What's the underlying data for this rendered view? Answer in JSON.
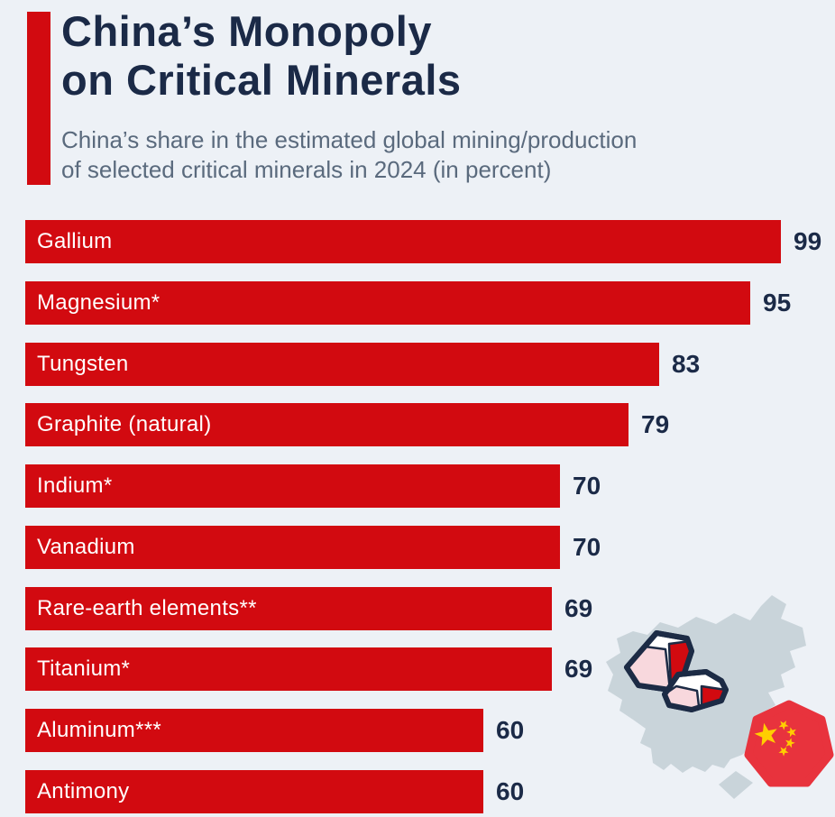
{
  "page": {
    "background_color": "#edf1f6"
  },
  "header": {
    "accent_color": "#d20a10",
    "title_line1": "China’s Monopoly",
    "title_line2": "on Critical Minerals",
    "title_color": "#1b2a47",
    "subtitle_line1": "China’s share in the estimated global mining/production",
    "subtitle_line2": "of selected critical minerals in 2024 (in percent)",
    "subtitle_color": "#5a6a7d"
  },
  "chart_data": {
    "type": "bar",
    "orientation": "horizontal",
    "title": "China’s Monopoly on Critical Minerals",
    "subtitle": "China’s share in the estimated global mining/production of selected critical minerals in 2024 (in percent)",
    "unit": "percent",
    "year": "2024",
    "xlim": [
      0,
      100
    ],
    "grid": false,
    "legend": false,
    "categories": [
      "Gallium",
      "Magnesium*",
      "Tungsten",
      "Graphite (natural)",
      "Indium*",
      "Vanadium",
      "Rare-earth elements**",
      "Titanium*",
      "Aluminum***",
      "Antimony"
    ],
    "values": [
      99,
      95,
      83,
      79,
      70,
      70,
      69,
      69,
      60,
      60
    ],
    "bar_color": "#d20a10",
    "bar_label_color": "#ffffff",
    "value_label_color": "#1b2a47"
  },
  "illustration": {
    "name": "china-map-with-mineral-crystals-and-flag-badge",
    "map_color": "#c9d4da",
    "crystal_outline_color": "#1c2b45",
    "crystal_red": "#d20a10",
    "crystal_pink": "#f8d8dd",
    "crystal_white": "#ffffff",
    "flag_red": "#e8333d",
    "flag_star_yellow": "#ffce00"
  }
}
